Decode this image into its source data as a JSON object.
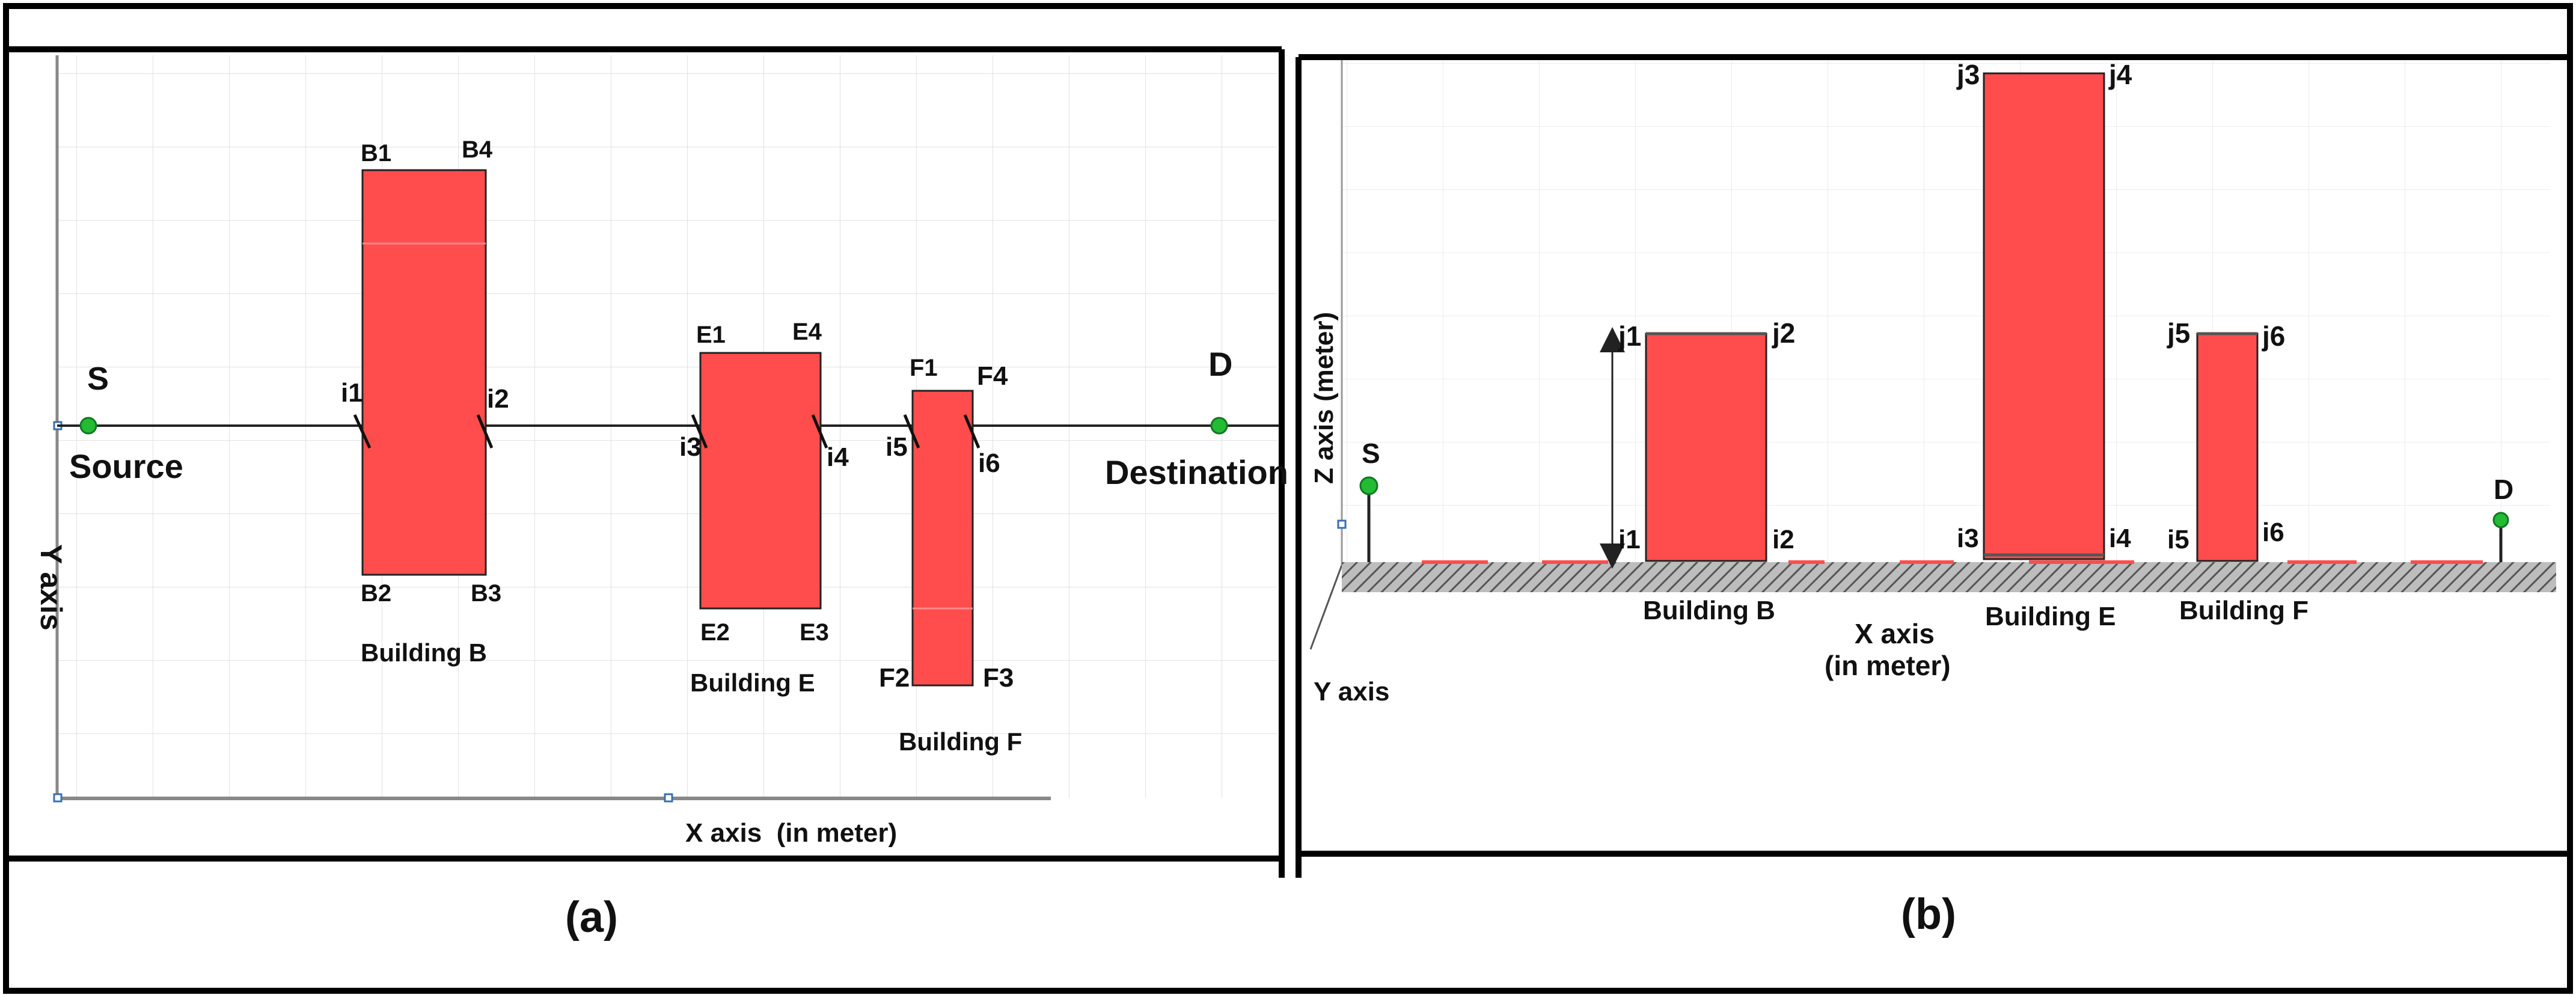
{
  "colors": {
    "building_fill": "#ff4d4d",
    "building_stroke": "#222222",
    "node_green": "#22bb33",
    "ground_hatch": "#7a7a7a",
    "grid": "#dcdcdc",
    "frame": "#000000"
  },
  "panel_a": {
    "caption": "(a)",
    "x_axis_label": "X axis  (in meter)",
    "y_axis_label": "Y axis",
    "source": {
      "letter": "S",
      "label": "Source"
    },
    "destination": {
      "letter": "D",
      "label": "Destination"
    },
    "buildings": [
      {
        "name": "Building B",
        "corners": [
          "B1",
          "B4",
          "B2",
          "B3"
        ],
        "entry": "i1",
        "exit": "i2"
      },
      {
        "name": "Building E",
        "corners": [
          "E1",
          "E4",
          "E2",
          "E3"
        ],
        "entry": "i3",
        "exit": "i4"
      },
      {
        "name": "Building F",
        "corners": [
          "F1",
          "F4",
          "F2",
          "F3"
        ],
        "entry": "i5",
        "exit": "i6"
      }
    ]
  },
  "panel_b": {
    "caption": "(b)",
    "x_axis_label_line1": "X axis",
    "x_axis_label_line2": "(in meter)",
    "y_axis_label": "Y axis",
    "z_axis_label": "Z axis (meter)",
    "source_letter": "S",
    "destination_letter": "D",
    "buildings": [
      {
        "name": "Building B",
        "top": [
          "j1",
          "j2"
        ],
        "bottom": [
          "i1",
          "i2"
        ]
      },
      {
        "name": "Building E",
        "top": [
          "j3",
          "j4"
        ],
        "bottom": [
          "i3",
          "i4"
        ]
      },
      {
        "name": "Building F",
        "top": [
          "j5",
          "j6"
        ],
        "bottom": [
          "i5",
          "i6"
        ]
      }
    ]
  }
}
